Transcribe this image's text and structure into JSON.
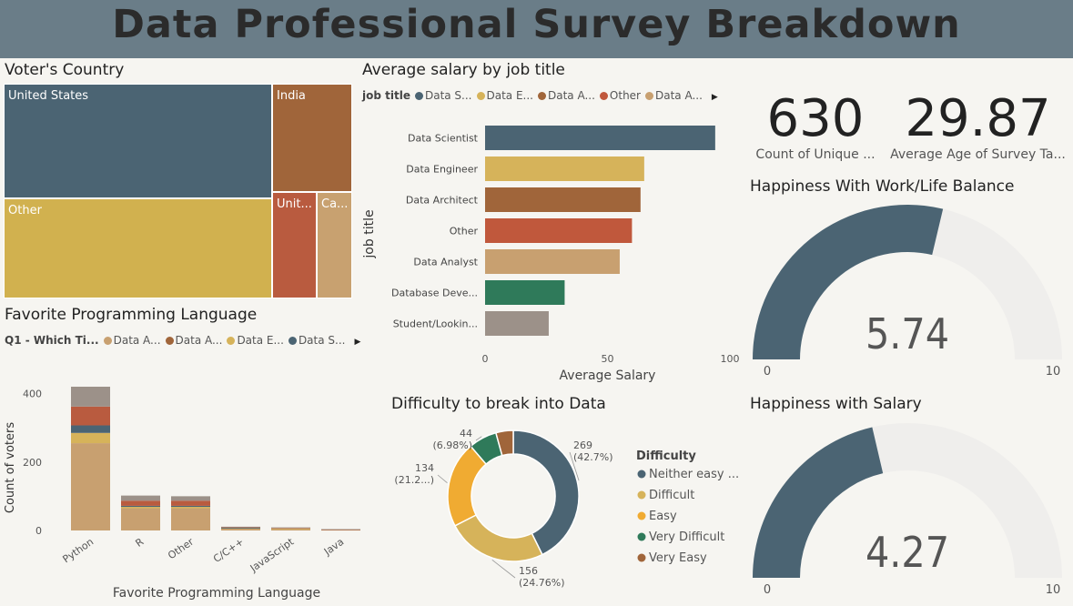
{
  "header": {
    "title": "Data Professional Survey Breakdown"
  },
  "treemap": {
    "title": "Voter's Country",
    "cells": [
      {
        "label": "United States",
        "color": "#4b6473"
      },
      {
        "label": "India",
        "color": "#a0653a"
      },
      {
        "label": "Other",
        "color": "#d1b14f"
      },
      {
        "label": "Unit...",
        "color": "#b95b3f"
      },
      {
        "label": "Ca...",
        "color": "#c8a170"
      }
    ]
  },
  "kpis": [
    {
      "value": "630",
      "label": "Count of Unique ..."
    },
    {
      "value": "29.87",
      "label": "Average Age of Survey Ta..."
    }
  ],
  "salary_legend": {
    "title": "job title",
    "items": [
      {
        "label": "Data S...",
        "color": "#4b6473"
      },
      {
        "label": "Data E...",
        "color": "#d6b35a"
      },
      {
        "label": "Data A...",
        "color": "#a0653a"
      },
      {
        "label": "Other",
        "color": "#c0583c"
      },
      {
        "label": "Data A...",
        "color": "#c8a070"
      }
    ]
  },
  "lang_legend": {
    "title": "Q1 - Which Ti...",
    "items": [
      {
        "label": "Data A...",
        "color": "#c8a070"
      },
      {
        "label": "Data A...",
        "color": "#a0653a"
      },
      {
        "label": "Data E...",
        "color": "#d6b35a"
      },
      {
        "label": "Data S...",
        "color": "#4b6473"
      }
    ]
  },
  "donut_legend_title": "Difficulty",
  "gauges": [
    {
      "title": "Happiness With Work/Life Balance",
      "value": 5.74,
      "display": "5.74",
      "min": 0,
      "max": 10,
      "min_label": "0",
      "max_label": "10"
    },
    {
      "title": "Happiness with Salary",
      "value": 4.27,
      "display": "4.27",
      "min": 0,
      "max": 10,
      "min_label": "0",
      "max_label": "10"
    }
  ],
  "chart_data": [
    {
      "type": "bar",
      "orientation": "horizontal",
      "title": "Average salary by job title",
      "xlabel": "Average Salary",
      "ylabel": "job title",
      "xlim": [
        0,
        100
      ],
      "xticks": [
        "0",
        "50",
        "100"
      ],
      "categories": [
        "Data Scientist",
        "Data Engineer",
        "Data Architect",
        "Other",
        "Data Analyst",
        "Database Deve...",
        "Student/Lookin..."
      ],
      "values": [
        94,
        65,
        63.5,
        60,
        55,
        32.5,
        26
      ],
      "colors": [
        "#4b6473",
        "#d6b35a",
        "#a0653a",
        "#c0583c",
        "#c8a070",
        "#2f7a5a",
        "#9c9189"
      ]
    },
    {
      "type": "bar",
      "stacked": true,
      "title": "Favorite Programming Language",
      "xlabel": "Favorite Programming Language",
      "ylabel": "Count of voters",
      "ylim": [
        0,
        420
      ],
      "yticks": [
        "0",
        "200",
        "400"
      ],
      "categories": [
        "Python",
        "R",
        "Other",
        "C/C++",
        "JavaScript",
        "Java"
      ],
      "series": [
        {
          "color": "#c8a070",
          "values": [
            255,
            65,
            65,
            6,
            5,
            2
          ]
        },
        {
          "color": "#d6b35a",
          "values": [
            30,
            4,
            4,
            1,
            1,
            0
          ]
        },
        {
          "color": "#4b6473",
          "values": [
            22,
            3,
            3,
            1,
            0,
            0
          ]
        },
        {
          "color": "#b95b3f",
          "values": [
            55,
            15,
            15,
            2,
            2,
            1
          ]
        },
        {
          "color": "#9c9189",
          "values": [
            58,
            15,
            13,
            1,
            1,
            1
          ]
        }
      ]
    },
    {
      "type": "pie",
      "donut": true,
      "title": "Difficulty to break into Data",
      "slices": [
        {
          "name": "Neither easy ...",
          "value": 269,
          "label": "269",
          "pct": "(42.7%)",
          "color": "#4b6473"
        },
        {
          "name": "Difficult",
          "value": 156,
          "label": "156",
          "pct": "(24.76%)",
          "color": "#d6b35a"
        },
        {
          "name": "Easy",
          "value": 134,
          "label": "134",
          "pct": "(21.2...)",
          "color": "#f0ab32"
        },
        {
          "name": "Very Difficult",
          "value": 44,
          "label": "44",
          "pct": "(6.98%)",
          "color": "#2f7a5a"
        },
        {
          "name": "Very Easy",
          "value": 27,
          "label": "",
          "pct": "",
          "color": "#a0653a"
        }
      ]
    }
  ]
}
